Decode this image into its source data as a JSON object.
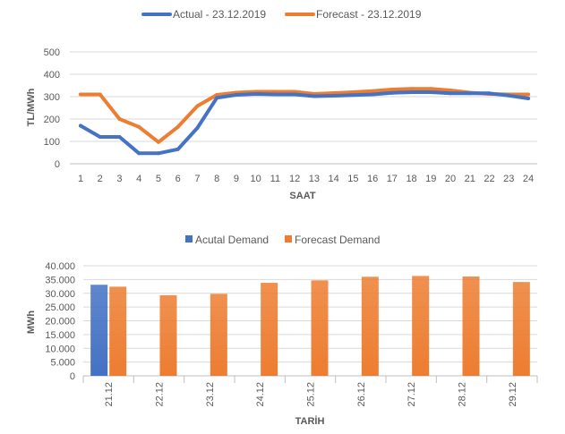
{
  "chart_data": [
    {
      "type": "line",
      "title": "",
      "xlabel": "SAAT",
      "ylabel": "TL/MWh",
      "ylim": [
        0,
        500
      ],
      "yticks": [
        0,
        100,
        200,
        300,
        400,
        500
      ],
      "grid": true,
      "legend_position": "top",
      "categories": [
        "1",
        "2",
        "3",
        "4",
        "5",
        "6",
        "7",
        "8",
        "9",
        "10",
        "11",
        "12",
        "13",
        "14",
        "15",
        "16",
        "17",
        "18",
        "19",
        "20",
        "21",
        "22",
        "23",
        "24"
      ],
      "series": [
        {
          "name": "Actual - 23.12.2019",
          "color": "#4472C4",
          "values": [
            170,
            120,
            120,
            47,
            47,
            65,
            160,
            295,
            308,
            312,
            310,
            310,
            302,
            304,
            307,
            310,
            317,
            320,
            320,
            315,
            315,
            315,
            305,
            292
          ]
        },
        {
          "name": "Forecast - 23.12.2019",
          "color": "#ED7D31",
          "values": [
            310,
            310,
            200,
            165,
            97,
            165,
            258,
            308,
            318,
            322,
            322,
            322,
            312,
            316,
            320,
            325,
            332,
            335,
            335,
            328,
            318,
            312,
            310,
            310
          ]
        }
      ]
    },
    {
      "type": "bar",
      "title": "",
      "xlabel": "TARİH",
      "ylabel": "MWh",
      "ylim": [
        0,
        40000
      ],
      "yticks": [
        0,
        5000,
        10000,
        15000,
        20000,
        25000,
        30000,
        35000,
        40000
      ],
      "ytick_labels": [
        "0",
        "5.000",
        "10.000",
        "15.000",
        "20.000",
        "25.000",
        "30.000",
        "35.000",
        "40.000"
      ],
      "grid": true,
      "legend_position": "top",
      "categories": [
        "21.12",
        "22.12",
        "23.12",
        "24.12",
        "25.12",
        "26.12",
        "27.12",
        "28.12",
        "29.12"
      ],
      "series": [
        {
          "name": "Acutal Demand",
          "color": "#4472C4",
          "values": [
            33100,
            null,
            null,
            null,
            null,
            null,
            null,
            null,
            null
          ]
        },
        {
          "name": "Forecast Demand",
          "color": "#ED7D31",
          "values": [
            32400,
            29300,
            29800,
            33800,
            34700,
            36000,
            36300,
            36100,
            34100
          ]
        }
      ]
    }
  ]
}
